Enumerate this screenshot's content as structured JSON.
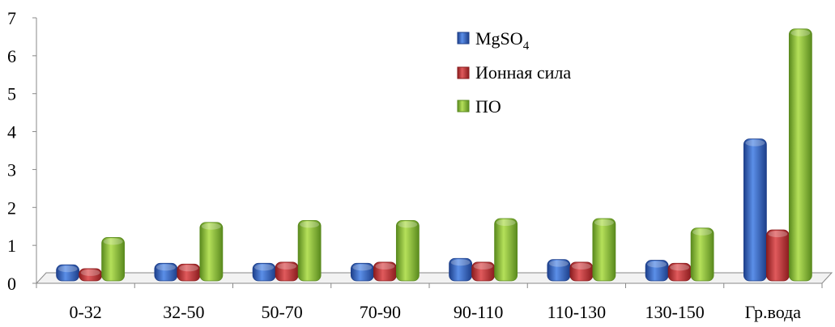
{
  "chart_data": {
    "type": "bar",
    "categories": [
      "0-32",
      "32-50",
      "50-70",
      "70-90",
      "90-110",
      "110-130",
      "130-150",
      "Гр.вода"
    ],
    "series": [
      {
        "name": "MgSO",
        "name_sub": "4",
        "color": "#3a6fd0",
        "values": [
          0.38,
          0.42,
          0.42,
          0.42,
          0.55,
          0.52,
          0.5,
          3.7
        ]
      },
      {
        "name": "Ионная сила",
        "color": "#c8383a",
        "values": [
          0.28,
          0.4,
          0.45,
          0.45,
          0.45,
          0.45,
          0.42,
          1.3
        ]
      },
      {
        "name": "ПО",
        "color": "#8fc23a",
        "values": [
          1.1,
          1.5,
          1.55,
          1.55,
          1.6,
          1.6,
          1.35,
          6.6
        ]
      }
    ],
    "y_ticks": [
      "0",
      "1",
      "2",
      "3",
      "4",
      "5",
      "6",
      "7"
    ],
    "ylim": [
      0,
      7
    ],
    "grid": false,
    "legend_position": "top-right"
  }
}
